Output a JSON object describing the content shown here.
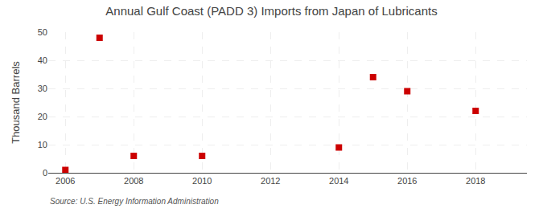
{
  "chart_data": {
    "type": "scatter",
    "title": "Annual Gulf Coast (PADD 3) Imports from Japan of Lubricants",
    "ylabel": "Thousand Barrels",
    "source": "Source: U.S. Energy Information Administration",
    "x": [
      2006,
      2007,
      2008,
      2010,
      2014,
      2015,
      2016,
      2018
    ],
    "values": [
      1,
      48,
      6,
      6,
      9,
      34,
      29,
      22
    ],
    "color": "#cc0000",
    "marker": "square",
    "xlim": [
      2005.5,
      2019.5
    ],
    "xticks": [
      2006,
      2008,
      2010,
      2012,
      2014,
      2016,
      2018
    ],
    "ylim": [
      0,
      50
    ],
    "yticks": [
      0,
      10,
      20,
      30,
      40,
      50
    ],
    "grid": true
  }
}
